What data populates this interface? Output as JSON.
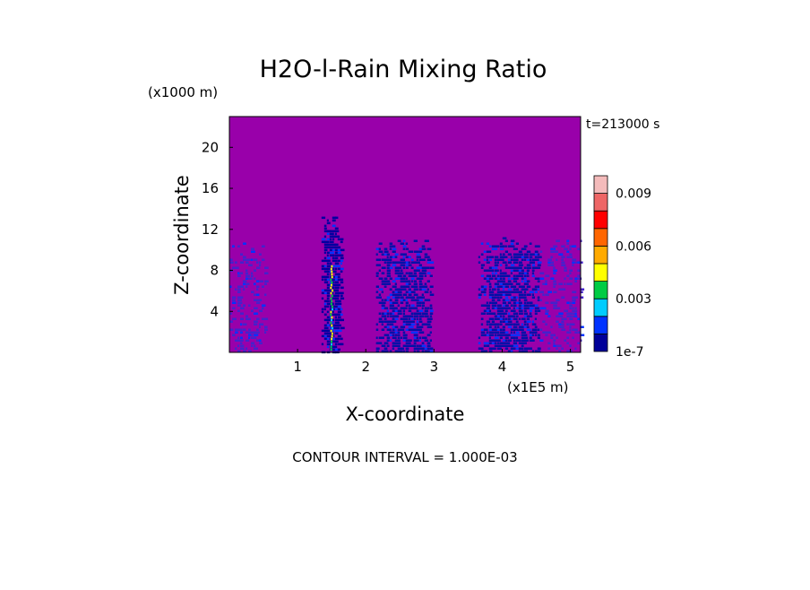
{
  "chart_data": {
    "type": "heatmap",
    "title": "H2O-l-Rain Mixing Ratio",
    "time_label": "t=213000 s",
    "xlabel": "X-coordinate",
    "ylabel": "Z-coordinate",
    "x_unit": "(x1E5 m)",
    "y_unit": "(x1000 m)",
    "xlim": [
      0,
      5.15
    ],
    "ylim": [
      0,
      23
    ],
    "x_ticks": [
      1,
      2,
      3,
      4,
      5
    ],
    "y_ticks": [
      4,
      8,
      12,
      16,
      20
    ],
    "background_color": "#9900AA",
    "footer": "CONTOUR INTERVAL = 1.000E-03",
    "colorbar": {
      "colors": [
        "#000099",
        "#0033FF",
        "#00CCFF",
        "#00CC44",
        "#FFFF00",
        "#FFAA00",
        "#FF6600",
        "#FF0000",
        "#EE6666",
        "#F4BBBB"
      ],
      "labels": [
        {
          "text": "1e-7",
          "level": 0
        },
        {
          "text": "0.003",
          "level": 3
        },
        {
          "text": "0.006",
          "level": 6
        },
        {
          "text": "0.009",
          "level": 9
        }
      ]
    },
    "rain_regions": [
      {
        "x0": 0.0,
        "x1": 0.55,
        "ztop": 11.5,
        "density": 0.32,
        "color": "#4422CC"
      },
      {
        "x0": 1.35,
        "x1": 1.65,
        "ztop": 13.5,
        "density": 0.85,
        "color": "#0000A0"
      },
      {
        "x0": 2.15,
        "x1": 2.95,
        "ztop": 11.5,
        "density": 0.7,
        "color": "#0010A8"
      },
      {
        "x0": 3.65,
        "x1": 4.55,
        "ztop": 11.5,
        "density": 0.72,
        "color": "#0010A8"
      },
      {
        "x0": 4.55,
        "x1": 5.15,
        "ztop": 11.5,
        "density": 0.3,
        "color": "#4422CC"
      }
    ],
    "core_column": {
      "x": 1.5,
      "z0": 0.3,
      "z1": 8.5,
      "colors": [
        "#00CCFF",
        "#00CC44",
        "#FFFF00"
      ]
    }
  }
}
